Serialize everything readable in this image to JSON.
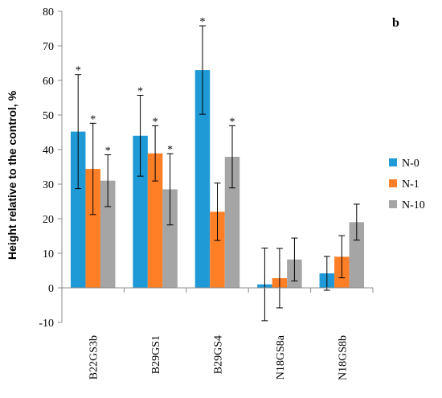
{
  "chart_data": {
    "type": "bar",
    "panel_label": "b",
    "ylabel": "Height relative to the control, %",
    "xlabel": "",
    "ylim": [
      -10,
      80
    ],
    "yticks": [
      -10,
      0,
      10,
      20,
      30,
      40,
      50,
      60,
      70,
      80
    ],
    "categories": [
      "B22GS3b",
      "B29GS1",
      "B29GS4",
      "N18GS8a",
      "N18GS8b"
    ],
    "series": [
      {
        "name": "N-0",
        "color": "#1f9ad6",
        "values": [
          45.2,
          44.0,
          63.0,
          1.0,
          4.2
        ],
        "errors": [
          16.5,
          11.7,
          12.8,
          10.5,
          4.9
        ],
        "significant": [
          true,
          true,
          true,
          false,
          false
        ]
      },
      {
        "name": "N-1",
        "color": "#ff7f27",
        "values": [
          34.4,
          38.9,
          22.0,
          2.8,
          9.0
        ],
        "errors": [
          13.2,
          8.0,
          8.3,
          8.6,
          6.1
        ],
        "significant": [
          true,
          true,
          false,
          false,
          false
        ]
      },
      {
        "name": "N-10",
        "color": "#a5a5a5",
        "values": [
          31.0,
          28.5,
          37.9,
          8.2,
          19.0
        ],
        "errors": [
          7.5,
          10.3,
          9.0,
          6.2,
          5.2
        ],
        "significant": [
          true,
          true,
          true,
          false,
          false
        ]
      }
    ],
    "significance_marker": "*",
    "legend_position": "right",
    "grid": false
  }
}
